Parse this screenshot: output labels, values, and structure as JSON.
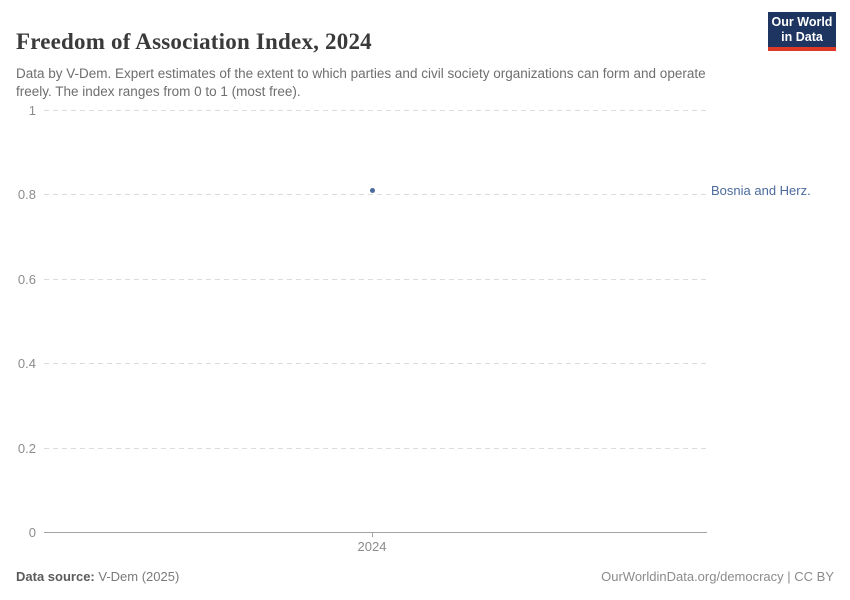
{
  "header": {
    "title": "Freedom of Association Index, 2024",
    "subtitle": "Data by V-Dem. Expert estimates of the extent to which parties and civil society organizations can form and operate freely. The index ranges from 0 to 1 (most free).",
    "logo": {
      "line1": "Our World",
      "line2": "in Data",
      "bg_color": "#1d3560",
      "accent_color": "#dc3927"
    }
  },
  "chart_data": {
    "type": "scatter",
    "title": "Freedom of Association Index, 2024",
    "x": [
      2024
    ],
    "series": [
      {
        "name": "Bosnia and Herz.",
        "values": [
          0.81
        ],
        "color": "#4C6A9C"
      }
    ],
    "xlabel": "",
    "ylabel": "",
    "ylim": [
      0,
      1
    ],
    "yticks": [
      0,
      0.2,
      0.4,
      0.6,
      0.8,
      1
    ],
    "ytick_labels": [
      "0",
      "0.2",
      "0.4",
      "0.6",
      "0.8",
      "1"
    ],
    "xticks": [
      2024
    ],
    "xtick_labels": [
      "2024"
    ],
    "grid": "horizontal-dashed",
    "legend_position": "right-of-point"
  },
  "footer": {
    "source_label": "Data source:",
    "source_value": " V-Dem (2025)",
    "credit": "OurWorldinData.org/democracy | CC BY"
  }
}
